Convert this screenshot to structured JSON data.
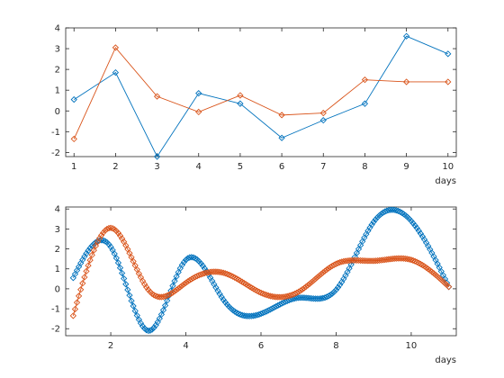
{
  "chart_data": [
    {
      "type": "line",
      "xlabel": "days",
      "ylabel": "",
      "title": "",
      "xlim": [
        0.8,
        10.2
      ],
      "ylim": [
        -2.2,
        4
      ],
      "xticks": [
        1,
        2,
        3,
        4,
        5,
        6,
        7,
        8,
        9,
        10
      ],
      "yticks": [
        -2,
        -1,
        0,
        1,
        2,
        3,
        4
      ],
      "grid": false,
      "marker": "diamond",
      "x": [
        1,
        2,
        3,
        4,
        5,
        6,
        7,
        8,
        9,
        10
      ],
      "series": [
        {
          "color": "#0072BD",
          "values": [
            0.55,
            1.85,
            -2.2,
            0.85,
            0.35,
            -1.3,
            -0.45,
            0.35,
            3.6,
            2.75
          ]
        },
        {
          "color": "#D95319",
          "values": [
            -1.35,
            3.05,
            0.7,
            -0.05,
            0.75,
            -0.2,
            -0.1,
            1.5,
            1.4,
            1.4
          ]
        }
      ]
    },
    {
      "type": "line",
      "xlabel": "days",
      "ylabel": "",
      "title": "",
      "xlim": [
        0.8,
        11.2
      ],
      "ylim": [
        -2.35,
        4.1
      ],
      "xticks": [
        2,
        4,
        6,
        8,
        10
      ],
      "yticks": [
        -2,
        -1,
        0,
        1,
        2,
        3,
        4
      ],
      "grid": false,
      "marker": "diamond",
      "dense_markers": true,
      "sample_step": 0.05,
      "control_x": [
        1,
        2,
        3,
        4,
        5,
        6,
        7,
        8,
        9,
        10,
        11
      ],
      "series": [
        {
          "color": "#0072BD",
          "knots": [
            0.55,
            2.1,
            -2.1,
            1.45,
            -0.55,
            -1.25,
            -0.45,
            -0.05,
            3.35,
            3.4,
            0.1
          ]
        },
        {
          "color": "#D95319",
          "knots": [
            -1.35,
            3.05,
            -0.05,
            0.3,
            0.8,
            -0.2,
            -0.15,
            1.25,
            1.4,
            1.45,
            0.1
          ]
        }
      ]
    }
  ]
}
